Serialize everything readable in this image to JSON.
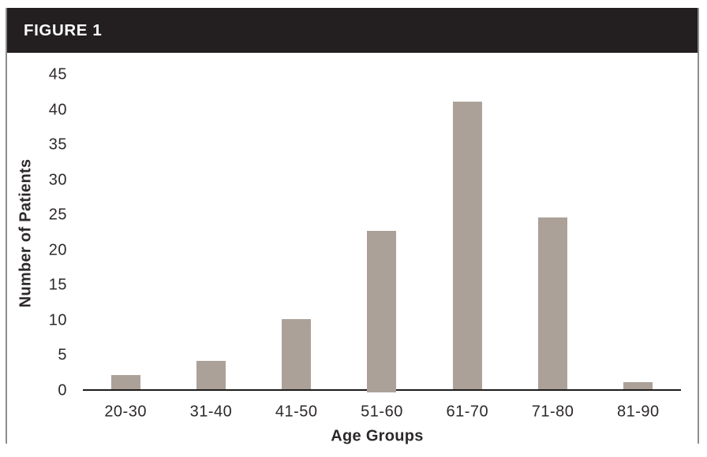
{
  "header": {
    "label": "FIGURE 1"
  },
  "chart_data": {
    "type": "bar",
    "title": "FIGURE 1",
    "categories": [
      "20-30",
      "31-40",
      "41-50",
      "51-60",
      "61-70",
      "71-80",
      "81-90"
    ],
    "values": [
      2,
      4,
      10,
      23,
      41,
      24.5,
      1
    ],
    "xlabel": "Age Groups",
    "ylabel": "Number of Patients",
    "ylim": [
      0,
      45
    ],
    "yticks": [
      0,
      5,
      10,
      15,
      20,
      25,
      30,
      35,
      40,
      45
    ],
    "grid": "off",
    "legend": "none",
    "bar_color": "#aca198"
  },
  "colors": {
    "header_bg": "#231f20",
    "header_text": "#ffffff",
    "border": "#8d8d8d",
    "axis": "#1b1b1b",
    "text": "#2d292a"
  }
}
